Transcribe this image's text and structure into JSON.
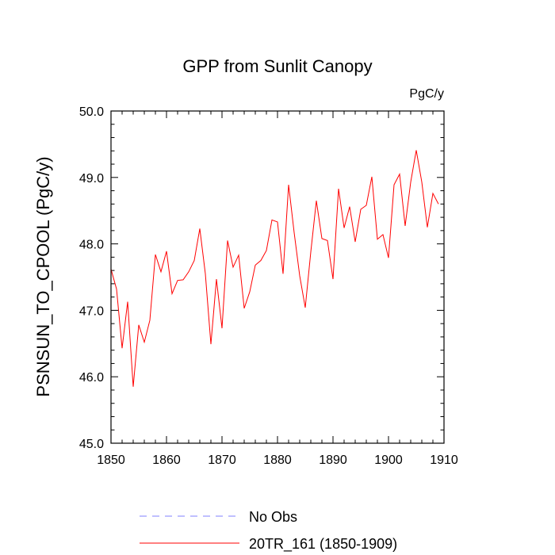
{
  "chart_data": {
    "type": "line",
    "title": "GPP from Sunlit Canopy",
    "units": "PgC/y",
    "xlabel": "",
    "ylabel": "PSNSUN_TO_CPOOL  (PgC/y)",
    "xlim": [
      1850,
      1910
    ],
    "ylim": [
      45.0,
      50.0
    ],
    "x_ticks": [
      1850,
      1860,
      1870,
      1880,
      1890,
      1900,
      1910
    ],
    "y_ticks": [
      45.0,
      46.0,
      47.0,
      48.0,
      49.0,
      50.0
    ],
    "y_tick_labels": [
      "45.0",
      "46.0",
      "47.0",
      "48.0",
      "49.0",
      "50.0"
    ],
    "series": [
      {
        "name": "No Obs",
        "color": "#8080ff",
        "style": "dashed",
        "x": [],
        "values": []
      },
      {
        "name": "20TR_161 (1850-1909)",
        "color": "#ff0000",
        "style": "solid",
        "x": [
          1850,
          1851,
          1852,
          1853,
          1854,
          1855,
          1856,
          1857,
          1858,
          1859,
          1860,
          1861,
          1862,
          1863,
          1864,
          1865,
          1866,
          1867,
          1868,
          1869,
          1870,
          1871,
          1872,
          1873,
          1874,
          1875,
          1876,
          1877,
          1878,
          1879,
          1880,
          1881,
          1882,
          1883,
          1884,
          1885,
          1886,
          1887,
          1888,
          1889,
          1890,
          1891,
          1892,
          1893,
          1894,
          1895,
          1896,
          1897,
          1898,
          1899,
          1900,
          1901,
          1902,
          1903,
          1904,
          1905,
          1906,
          1907,
          1908,
          1909
        ],
        "values": [
          47.62,
          47.32,
          46.43,
          47.13,
          45.85,
          46.78,
          46.52,
          46.85,
          47.84,
          47.58,
          47.89,
          47.25,
          47.45,
          47.46,
          47.58,
          47.75,
          48.23,
          47.55,
          46.49,
          47.47,
          46.73,
          48.05,
          47.65,
          47.83,
          47.03,
          47.28,
          47.68,
          47.75,
          47.9,
          48.36,
          48.33,
          47.55,
          48.89,
          48.17,
          47.52,
          47.04,
          47.88,
          48.65,
          48.08,
          48.05,
          47.47,
          48.83,
          48.24,
          48.56,
          48.03,
          48.52,
          48.58,
          49.01,
          48.07,
          48.14,
          47.79,
          48.89,
          49.05,
          48.27,
          48.93,
          49.41,
          48.93,
          48.25,
          48.76,
          48.6
        ]
      }
    ],
    "legend_position": "bottom"
  }
}
